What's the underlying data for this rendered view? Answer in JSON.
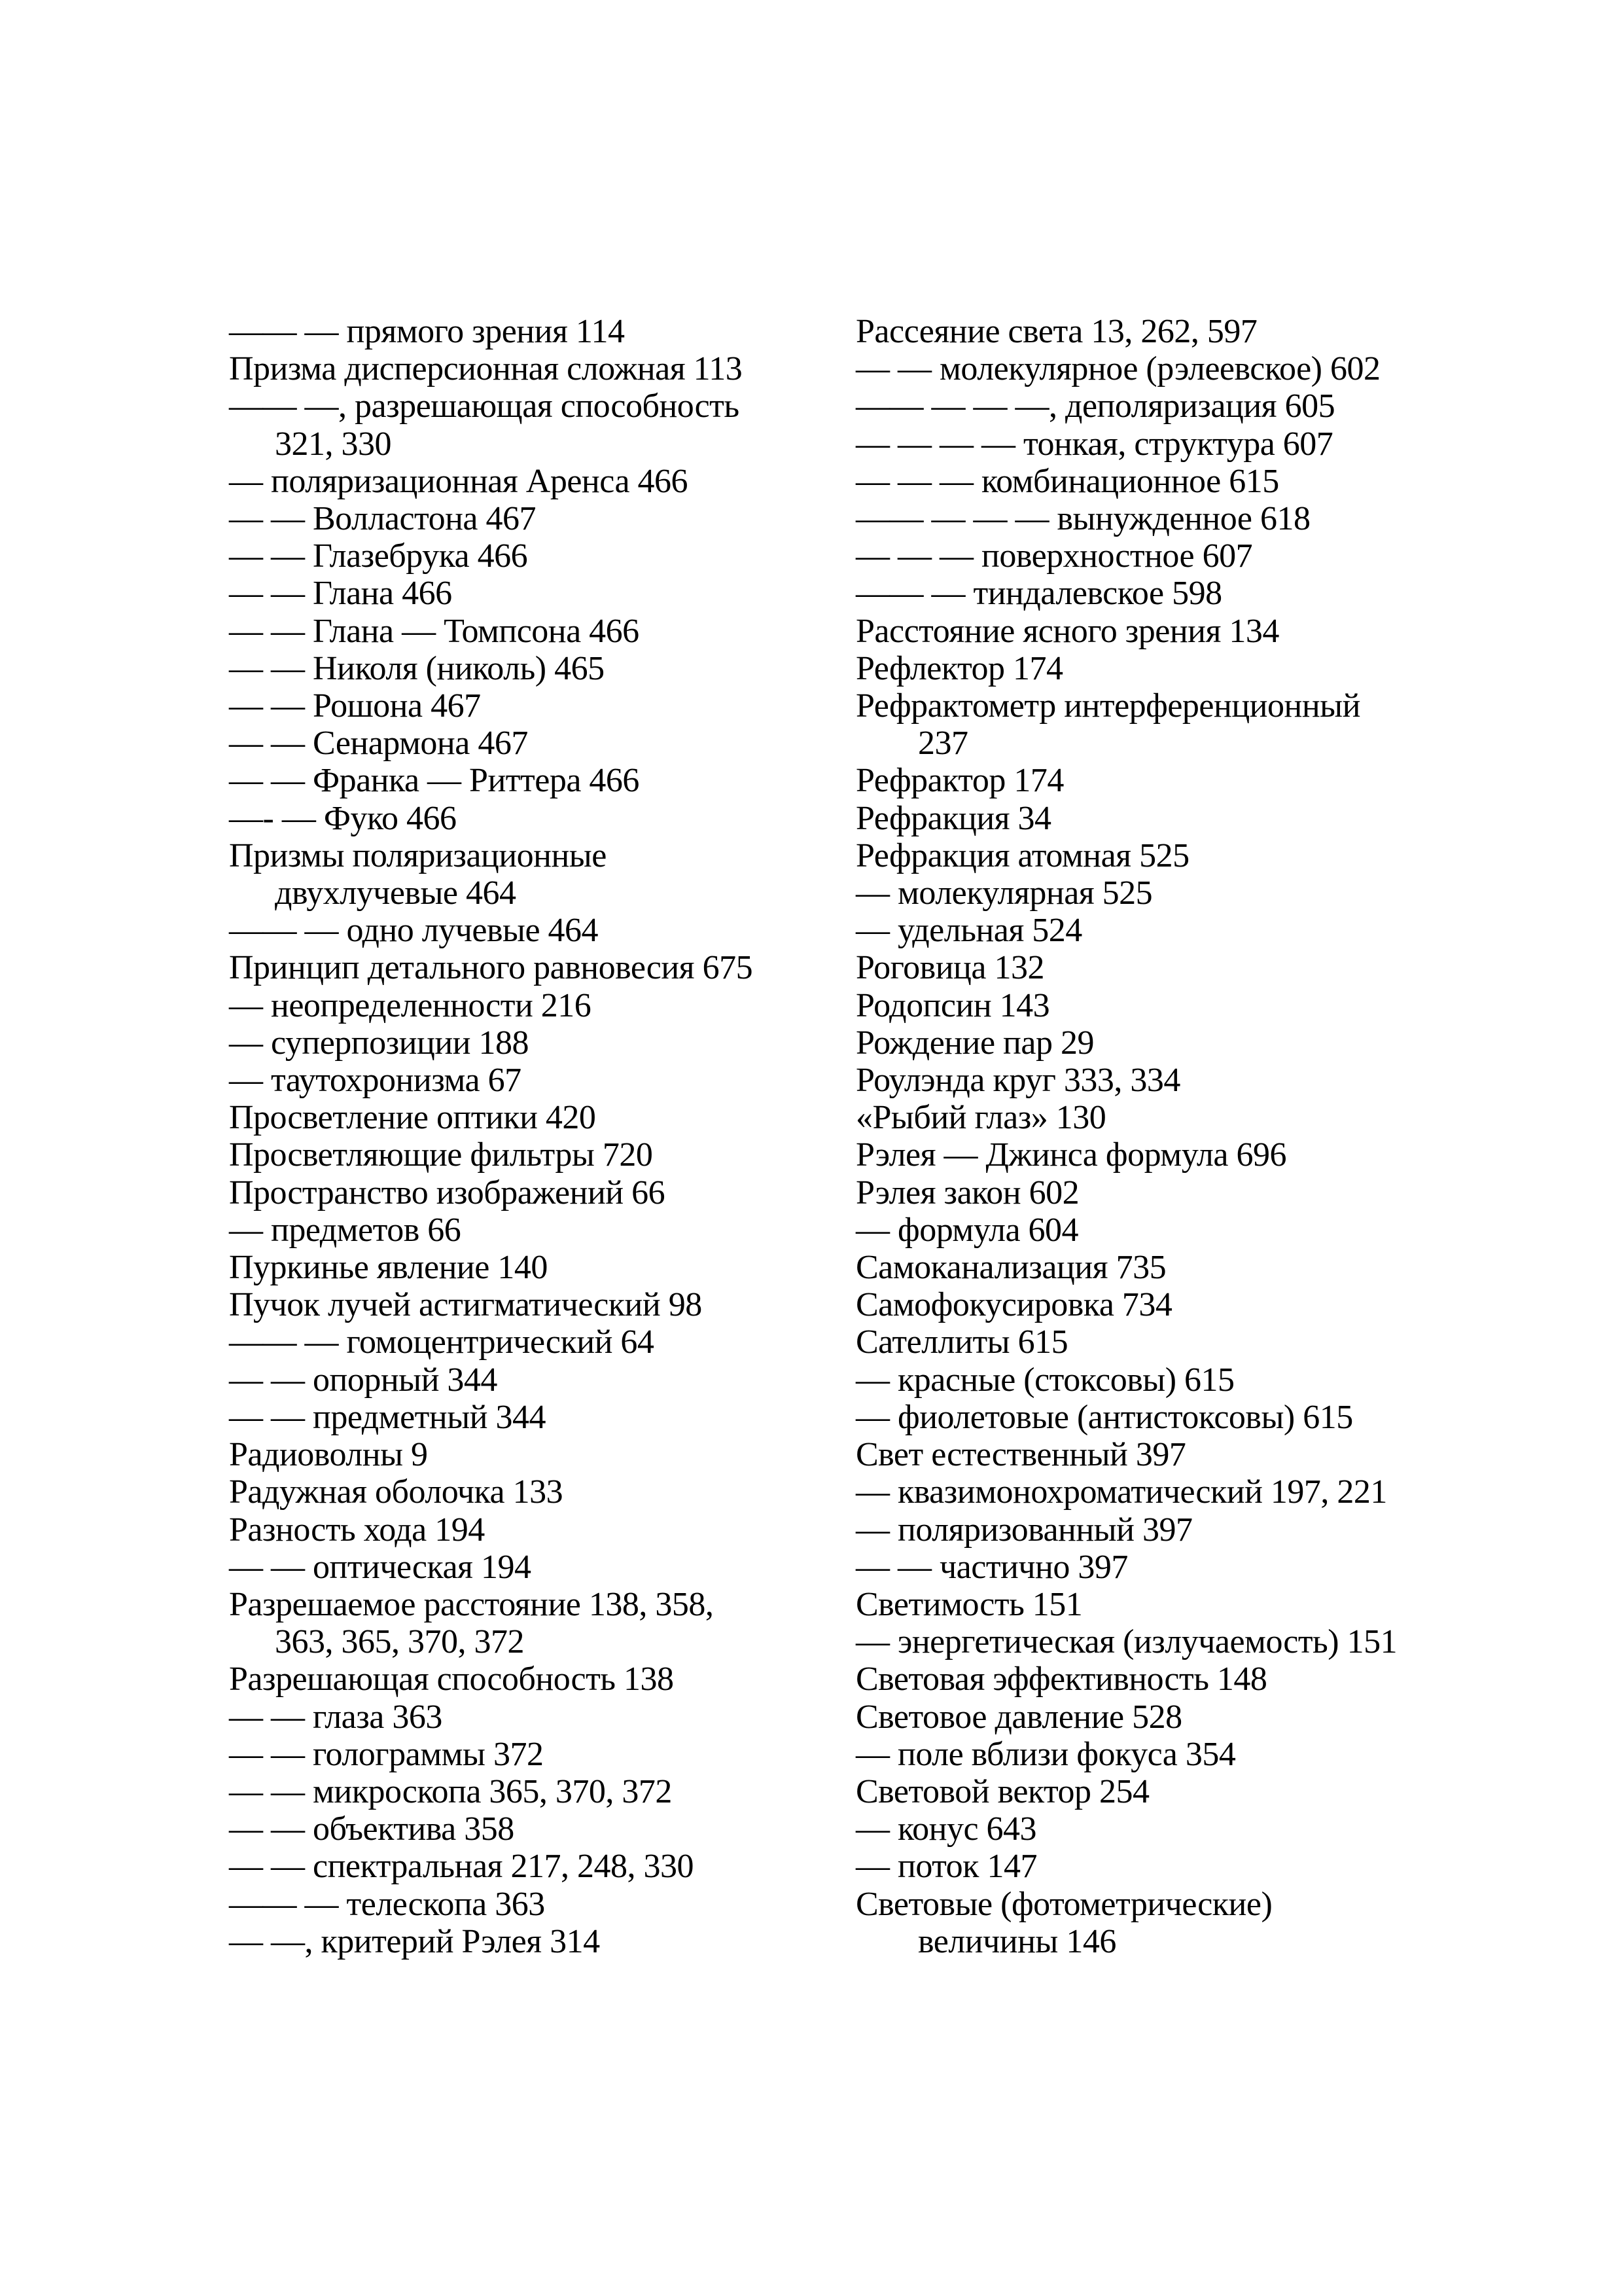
{
  "page": {
    "type": "book-index-page",
    "language": "ru",
    "background_color": "#ffffff",
    "text_color": "#000000"
  },
  "index": {
    "columns": {
      "left": {
        "lines": [
          {
            "t": "—— — прямого зрения 114"
          },
          {
            "t": "Призма дисперсионная сложная 113"
          },
          {
            "t": "—— —, разрешающая способность"
          },
          {
            "t": "321, 330",
            "cont": true
          },
          {
            "t": "— поляризационная Аренса 466"
          },
          {
            "t": "— — Волластона 467"
          },
          {
            "t": "— — Глазебрука 466"
          },
          {
            "t": "— — Глана 466"
          },
          {
            "t": "— — Глана — Томпсона 466"
          },
          {
            "t": "— — Николя (николь) 465"
          },
          {
            "t": "— — Рошона 467"
          },
          {
            "t": "— — Сенармона 467"
          },
          {
            "t": "— — Франка — Риттера 466"
          },
          {
            "t": "—- — Фуко 466"
          },
          {
            "t": "Призмы поляризационные"
          },
          {
            "t": "двухлучевые 464",
            "cont": true
          },
          {
            "t": "—— — одно лучевые 464"
          },
          {
            "t": "Принцип детального равновесия 675"
          },
          {
            "t": "— неопределенности 216"
          },
          {
            "t": "— суперпозиции 188"
          },
          {
            "t": "— таутохронизма 67"
          },
          {
            "t": "Просветление оптики 420"
          },
          {
            "t": "Просветляющие фильтры 720"
          },
          {
            "t": "Пространство изображений 66"
          },
          {
            "t": "— предметов 66"
          },
          {
            "t": "Пуркинье явление 140"
          },
          {
            "t": "Пучок лучей астигматический 98"
          },
          {
            "t": "—— — гомоцентрический 64"
          },
          {
            "t": "— — опорный 344"
          },
          {
            "t": "— — предметный 344"
          },
          {
            "t": "Радиоволны 9"
          },
          {
            "t": "Радужная оболочка 133"
          },
          {
            "t": "Разность хода 194"
          },
          {
            "t": "— — оптическая 194"
          },
          {
            "t": "Разрешаемое расстояние 138, 358,"
          },
          {
            "t": "363, 365, 370, 372",
            "cont": true
          },
          {
            "t": "Разрешающая способность 138"
          },
          {
            "t": "— — глаза 363"
          },
          {
            "t": "— — голограммы 372"
          },
          {
            "t": "— — микроскопа 365, 370, 372"
          },
          {
            "t": "— — объектива 358"
          },
          {
            "t": "— — спектральная 217, 248, 330"
          },
          {
            "t": "—— — телескопа 363"
          },
          {
            "t": "— —, критерий Рэлея 314"
          }
        ]
      },
      "right": {
        "lines": [
          {
            "t": "Рассеяние света 13, 262, 597"
          },
          {
            "t": "— — молекулярное (рэлеевское) 602"
          },
          {
            "t": "—— — — —, деполяризация 605"
          },
          {
            "t": "— — — — тонкая, структура 607"
          },
          {
            "t": "— — — комбинационное 615"
          },
          {
            "t": "—— — — — вынужденное 618"
          },
          {
            "t": "— — — поверхностное 607"
          },
          {
            "t": "—— — тиндалевское 598"
          },
          {
            "t": "Расстояние ясного зрения 134"
          },
          {
            "t": "Рефлектор 174"
          },
          {
            "t": "Рефрактометр интерференционный"
          },
          {
            "t": "237",
            "cont": true
          },
          {
            "t": "Рефрактор 174"
          },
          {
            "t": "Рефракция 34"
          },
          {
            "t": "Рефракция атомная 525"
          },
          {
            "t": "— молекулярная 525"
          },
          {
            "t": "— удельная 524"
          },
          {
            "t": "Роговица 132"
          },
          {
            "t": "Родопсин 143"
          },
          {
            "t": "Рождение пар 29"
          },
          {
            "t": "Роулэнда круг 333, 334"
          },
          {
            "t": "«Рыбий глаз» 130"
          },
          {
            "t": "Рэлея — Джинса формула 696"
          },
          {
            "t": "Рэлея закон 602"
          },
          {
            "t": "— формула 604"
          },
          {
            "t": "Самоканализация 735"
          },
          {
            "t": "Самофокусировка 734"
          },
          {
            "t": "Сателлиты 615"
          },
          {
            "t": "— красные (стоксовы) 615"
          },
          {
            "t": "— фиолетовые (антистоксовы) 615"
          },
          {
            "t": "Свет естественный 397"
          },
          {
            "t": "— квазимонохроматический 197, 221"
          },
          {
            "t": "— поляризованный 397"
          },
          {
            "t": "— — частично 397"
          },
          {
            "t": "Светимость 151"
          },
          {
            "t": "— энергетическая (излучаемость) 151"
          },
          {
            "t": "Световая эффективность 148"
          },
          {
            "t": "Световое давление 528"
          },
          {
            "t": "— поле вблизи фокуса 354"
          },
          {
            "t": "Световой вектор 254"
          },
          {
            "t": "— конус 643"
          },
          {
            "t": "— поток 147"
          },
          {
            "t": "Световые (фотометрические)"
          },
          {
            "t": "величины 146",
            "cont": true
          }
        ]
      }
    }
  }
}
